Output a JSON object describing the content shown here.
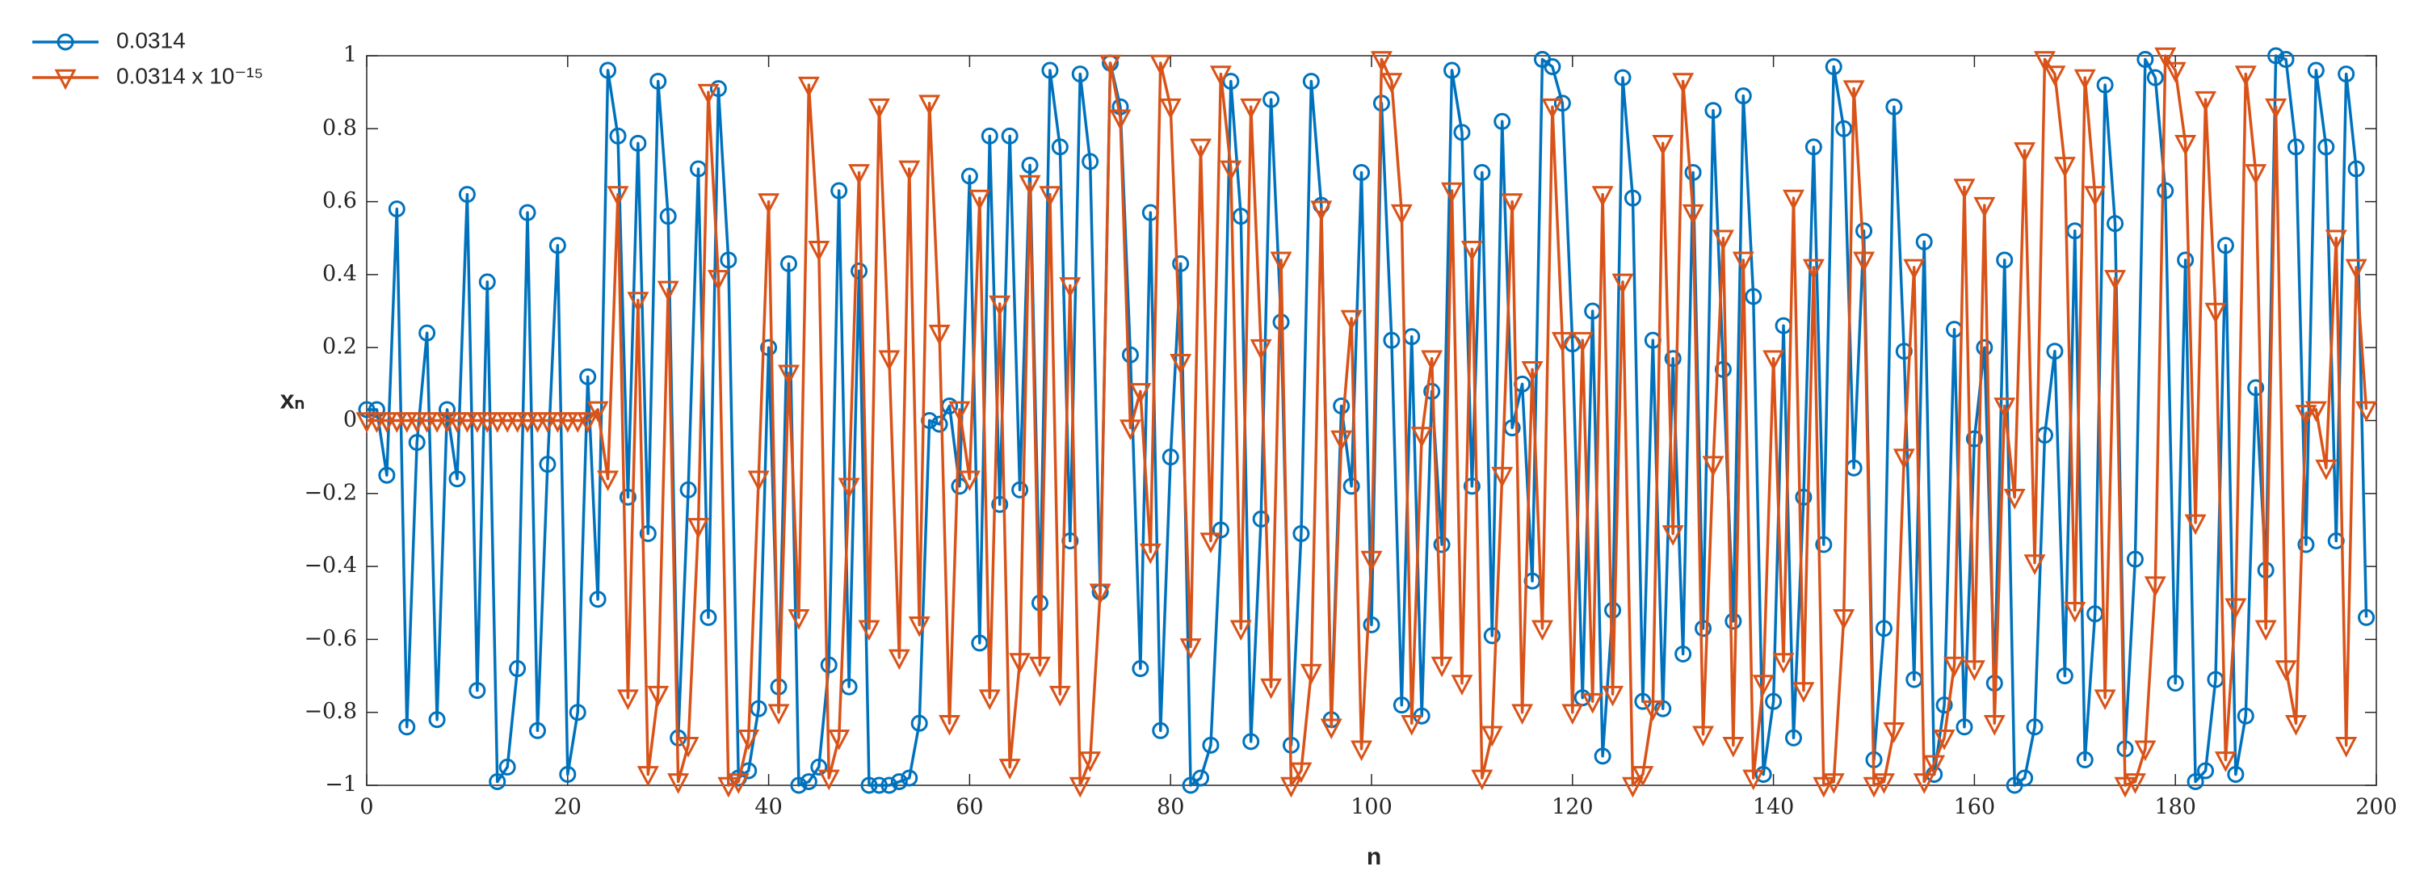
{
  "chart_data": {
    "type": "line",
    "xlabel": "n",
    "ylabel": "xₙ",
    "x": [
      0,
      1,
      2,
      3,
      4,
      5,
      6,
      7,
      8,
      9,
      10,
      11,
      12,
      13,
      14,
      15,
      16,
      17,
      18,
      19,
      20,
      21,
      22,
      23,
      24,
      25,
      26,
      27,
      28,
      29,
      30,
      31,
      32,
      33,
      34,
      35,
      36,
      37,
      38,
      39,
      40,
      41,
      42,
      43,
      44,
      45,
      46,
      47,
      48,
      49,
      50,
      51,
      52,
      53,
      54,
      55,
      56,
      57,
      58,
      59,
      60,
      61,
      62,
      63,
      64,
      65,
      66,
      67,
      68,
      69,
      70,
      71,
      72,
      73,
      74,
      75,
      76,
      77,
      78,
      79,
      80,
      81,
      82,
      83,
      84,
      85,
      86,
      87,
      88,
      89,
      90,
      91,
      92,
      93,
      94,
      95,
      96,
      97,
      98,
      99,
      100,
      101,
      102,
      103,
      104,
      105,
      106,
      107,
      108,
      109,
      110,
      111,
      112,
      113,
      114,
      115,
      116,
      117,
      118,
      119,
      120,
      121,
      122,
      123,
      124,
      125,
      126,
      127,
      128,
      129,
      130,
      131,
      132,
      133,
      134,
      135,
      136,
      137,
      138,
      139,
      140,
      141,
      142,
      143,
      144,
      145,
      146,
      147,
      148,
      149,
      150,
      151,
      152,
      153,
      154,
      155,
      156,
      157,
      158,
      159,
      160,
      161,
      162,
      163,
      164,
      165,
      166,
      167,
      168,
      169,
      170,
      171,
      172,
      173,
      174,
      175,
      176,
      177,
      178,
      179,
      180,
      181,
      182,
      183,
      184,
      185,
      186,
      187,
      188,
      189,
      190,
      191,
      192,
      193,
      194,
      195,
      196,
      197,
      198,
      199
    ],
    "series": [
      {
        "name": "0.0314",
        "color": "#0072BD",
        "marker": "circle",
        "values": [
          0.03,
          0.03,
          -0.15,
          0.58,
          -0.84,
          -0.06,
          0.24,
          -0.82,
          0.03,
          -0.16,
          0.62,
          -0.74,
          0.38,
          -0.99,
          -0.95,
          -0.68,
          0.57,
          -0.85,
          -0.12,
          0.48,
          -0.97,
          -0.8,
          0.12,
          -0.49,
          0.96,
          0.78,
          -0.21,
          0.76,
          -0.31,
          0.93,
          0.56,
          -0.87,
          -0.19,
          0.69,
          -0.54,
          0.91,
          0.44,
          -0.98,
          -0.96,
          -0.79,
          0.2,
          -0.73,
          0.43,
          -1,
          -0.99,
          -0.95,
          -0.67,
          0.63,
          -0.73,
          0.41,
          -1,
          -1,
          -1,
          -0.99,
          -0.98,
          -0.83,
          0,
          -0.01,
          0.04,
          -0.18,
          0.67,
          -0.61,
          0.78,
          -0.23,
          0.78,
          -0.19,
          0.7,
          -0.5,
          0.96,
          0.75,
          -0.33,
          0.95,
          0.71,
          -0.47,
          0.98,
          0.86,
          0.18,
          -0.68,
          0.57,
          -0.85,
          -0.1,
          0.43,
          -1,
          -0.98,
          -0.89,
          -0.3,
          0.93,
          0.56,
          -0.88,
          -0.27,
          0.88,
          0.27,
          -0.89,
          -0.31,
          0.93,
          0.59,
          -0.82,
          0.04,
          -0.18,
          0.68,
          -0.56,
          0.87,
          0.22,
          -0.78,
          0.23,
          -0.81,
          0.08,
          -0.34,
          0.96,
          0.79,
          -0.18,
          0.68,
          -0.59,
          0.82,
          -0.02,
          0.1,
          -0.44,
          0.99,
          0.97,
          0.87,
          0.21,
          -0.76,
          0.3,
          -0.92,
          -0.52,
          0.94,
          0.61,
          -0.77,
          0.22,
          -0.79,
          0.17,
          -0.64,
          0.68,
          -0.57,
          0.85,
          0.14,
          -0.55,
          0.89,
          0.34,
          -0.97,
          -0.77,
          0.26,
          -0.87,
          -0.21,
          0.75,
          -0.34,
          0.97,
          0.8,
          -0.13,
          0.52,
          -0.93,
          -0.57,
          0.86,
          0.19,
          -0.71,
          0.49,
          -0.97,
          -0.78,
          0.25,
          -0.84,
          -0.05,
          0.2,
          -0.72,
          0.44,
          -1,
          -0.98,
          -0.84,
          -0.04,
          0.19,
          -0.7,
          0.52,
          -0.93,
          -0.53,
          0.92,
          0.54,
          -0.9,
          -0.38,
          0.99,
          0.94,
          0.63,
          -0.72,
          0.44,
          -0.99,
          -0.96,
          -0.71,
          0.48,
          -0.97,
          -0.81,
          0.09,
          -0.41,
          1,
          0.99,
          0.75,
          -0.34,
          0.96,
          0.75,
          -0.33,
          0.95,
          0.69,
          -0.54
        ]
      },
      {
        "name": "0.0314 x 10⁻¹⁵",
        "color": "#D95319",
        "marker": "triangle-down",
        "values": [
          0,
          0,
          0,
          0,
          0,
          0,
          0,
          0,
          0,
          0,
          0,
          0,
          0,
          0,
          0,
          0,
          0,
          0,
          0,
          0,
          0,
          0,
          0,
          0.03,
          -0.16,
          0.62,
          -0.76,
          0.33,
          -0.97,
          -0.75,
          0.36,
          -0.99,
          -0.89,
          -0.29,
          0.9,
          0.39,
          -1,
          -0.99,
          -0.87,
          -0.16,
          0.6,
          -0.8,
          0.13,
          -0.54,
          0.92,
          0.47,
          -0.98,
          -0.87,
          -0.18,
          0.68,
          -0.57,
          0.86,
          0.17,
          -0.65,
          0.69,
          -0.56,
          0.87,
          0.24,
          -0.83,
          0.03,
          -0.16,
          0.61,
          -0.76,
          0.32,
          -0.95,
          -0.66,
          0.65,
          -0.67,
          0.62,
          -0.75,
          0.37,
          -1,
          -0.93,
          -0.47,
          0.98,
          0.83,
          -0.02,
          0.08,
          -0.36,
          0.98,
          0.86,
          0.16,
          -0.62,
          0.75,
          -0.33,
          0.95,
          0.69,
          -0.57,
          0.86,
          0.2,
          -0.73,
          0.44,
          -1,
          -0.96,
          -0.69,
          0.58,
          -0.84,
          -0.05,
          0.28,
          -0.9,
          -0.38,
          0.99,
          0.93,
          0.57,
          -0.83,
          -0.04,
          0.17,
          -0.67,
          0.63,
          -0.72,
          0.47,
          -0.98,
          -0.86,
          -0.15,
          0.6,
          -0.8,
          0.14,
          -0.57,
          0.86,
          0.22,
          -0.8,
          0.22,
          -0.77,
          0.62,
          -0.75,
          0.38,
          -1,
          -0.97,
          -0.79,
          0.76,
          -0.31,
          0.93,
          0.57,
          -0.86,
          -0.12,
          0.5,
          -0.89,
          0.44,
          -0.98,
          -0.72,
          0.17,
          -0.66,
          0.61,
          -0.74,
          0.42,
          -1,
          -0.99,
          -0.54,
          0.91,
          0.44,
          -1,
          -0.99,
          -0.85,
          -0.1,
          0.42,
          -0.99,
          -0.94,
          -0.87,
          -0.67,
          0.64,
          -0.68,
          0.59,
          -0.83,
          0.04,
          -0.21,
          0.74,
          -0.39,
          0.99,
          0.95,
          0.7,
          -0.52,
          0.94,
          0.62,
          -0.76,
          0.39,
          -1,
          -0.99,
          -0.9,
          -0.45,
          1,
          0.96,
          0.76,
          -0.28,
          0.88,
          0.3,
          -0.93,
          -0.51,
          0.95,
          0.68,
          -0.57,
          0.86,
          -0.68,
          -0.83,
          0.02,
          0.03,
          -0.13,
          0.5,
          -0.89,
          0.42,
          0.03
        ]
      }
    ],
    "xlim": [
      0,
      200
    ],
    "xticks": [
      0,
      20,
      40,
      60,
      80,
      100,
      120,
      140,
      160,
      180,
      200
    ],
    "ylim": [
      -1,
      1
    ],
    "yticks": [
      {
        "value": -1,
        "label": "−1"
      },
      {
        "value": -0.8,
        "label": "−0.8"
      },
      {
        "value": -0.6,
        "label": "−0.6"
      },
      {
        "value": -0.4,
        "label": "−0.4"
      },
      {
        "value": -0.2,
        "label": "−0.2"
      },
      0,
      0.2,
      0.4,
      0.6,
      0.8,
      1
    ],
    "grid": false,
    "legend": "outside-top-left"
  }
}
